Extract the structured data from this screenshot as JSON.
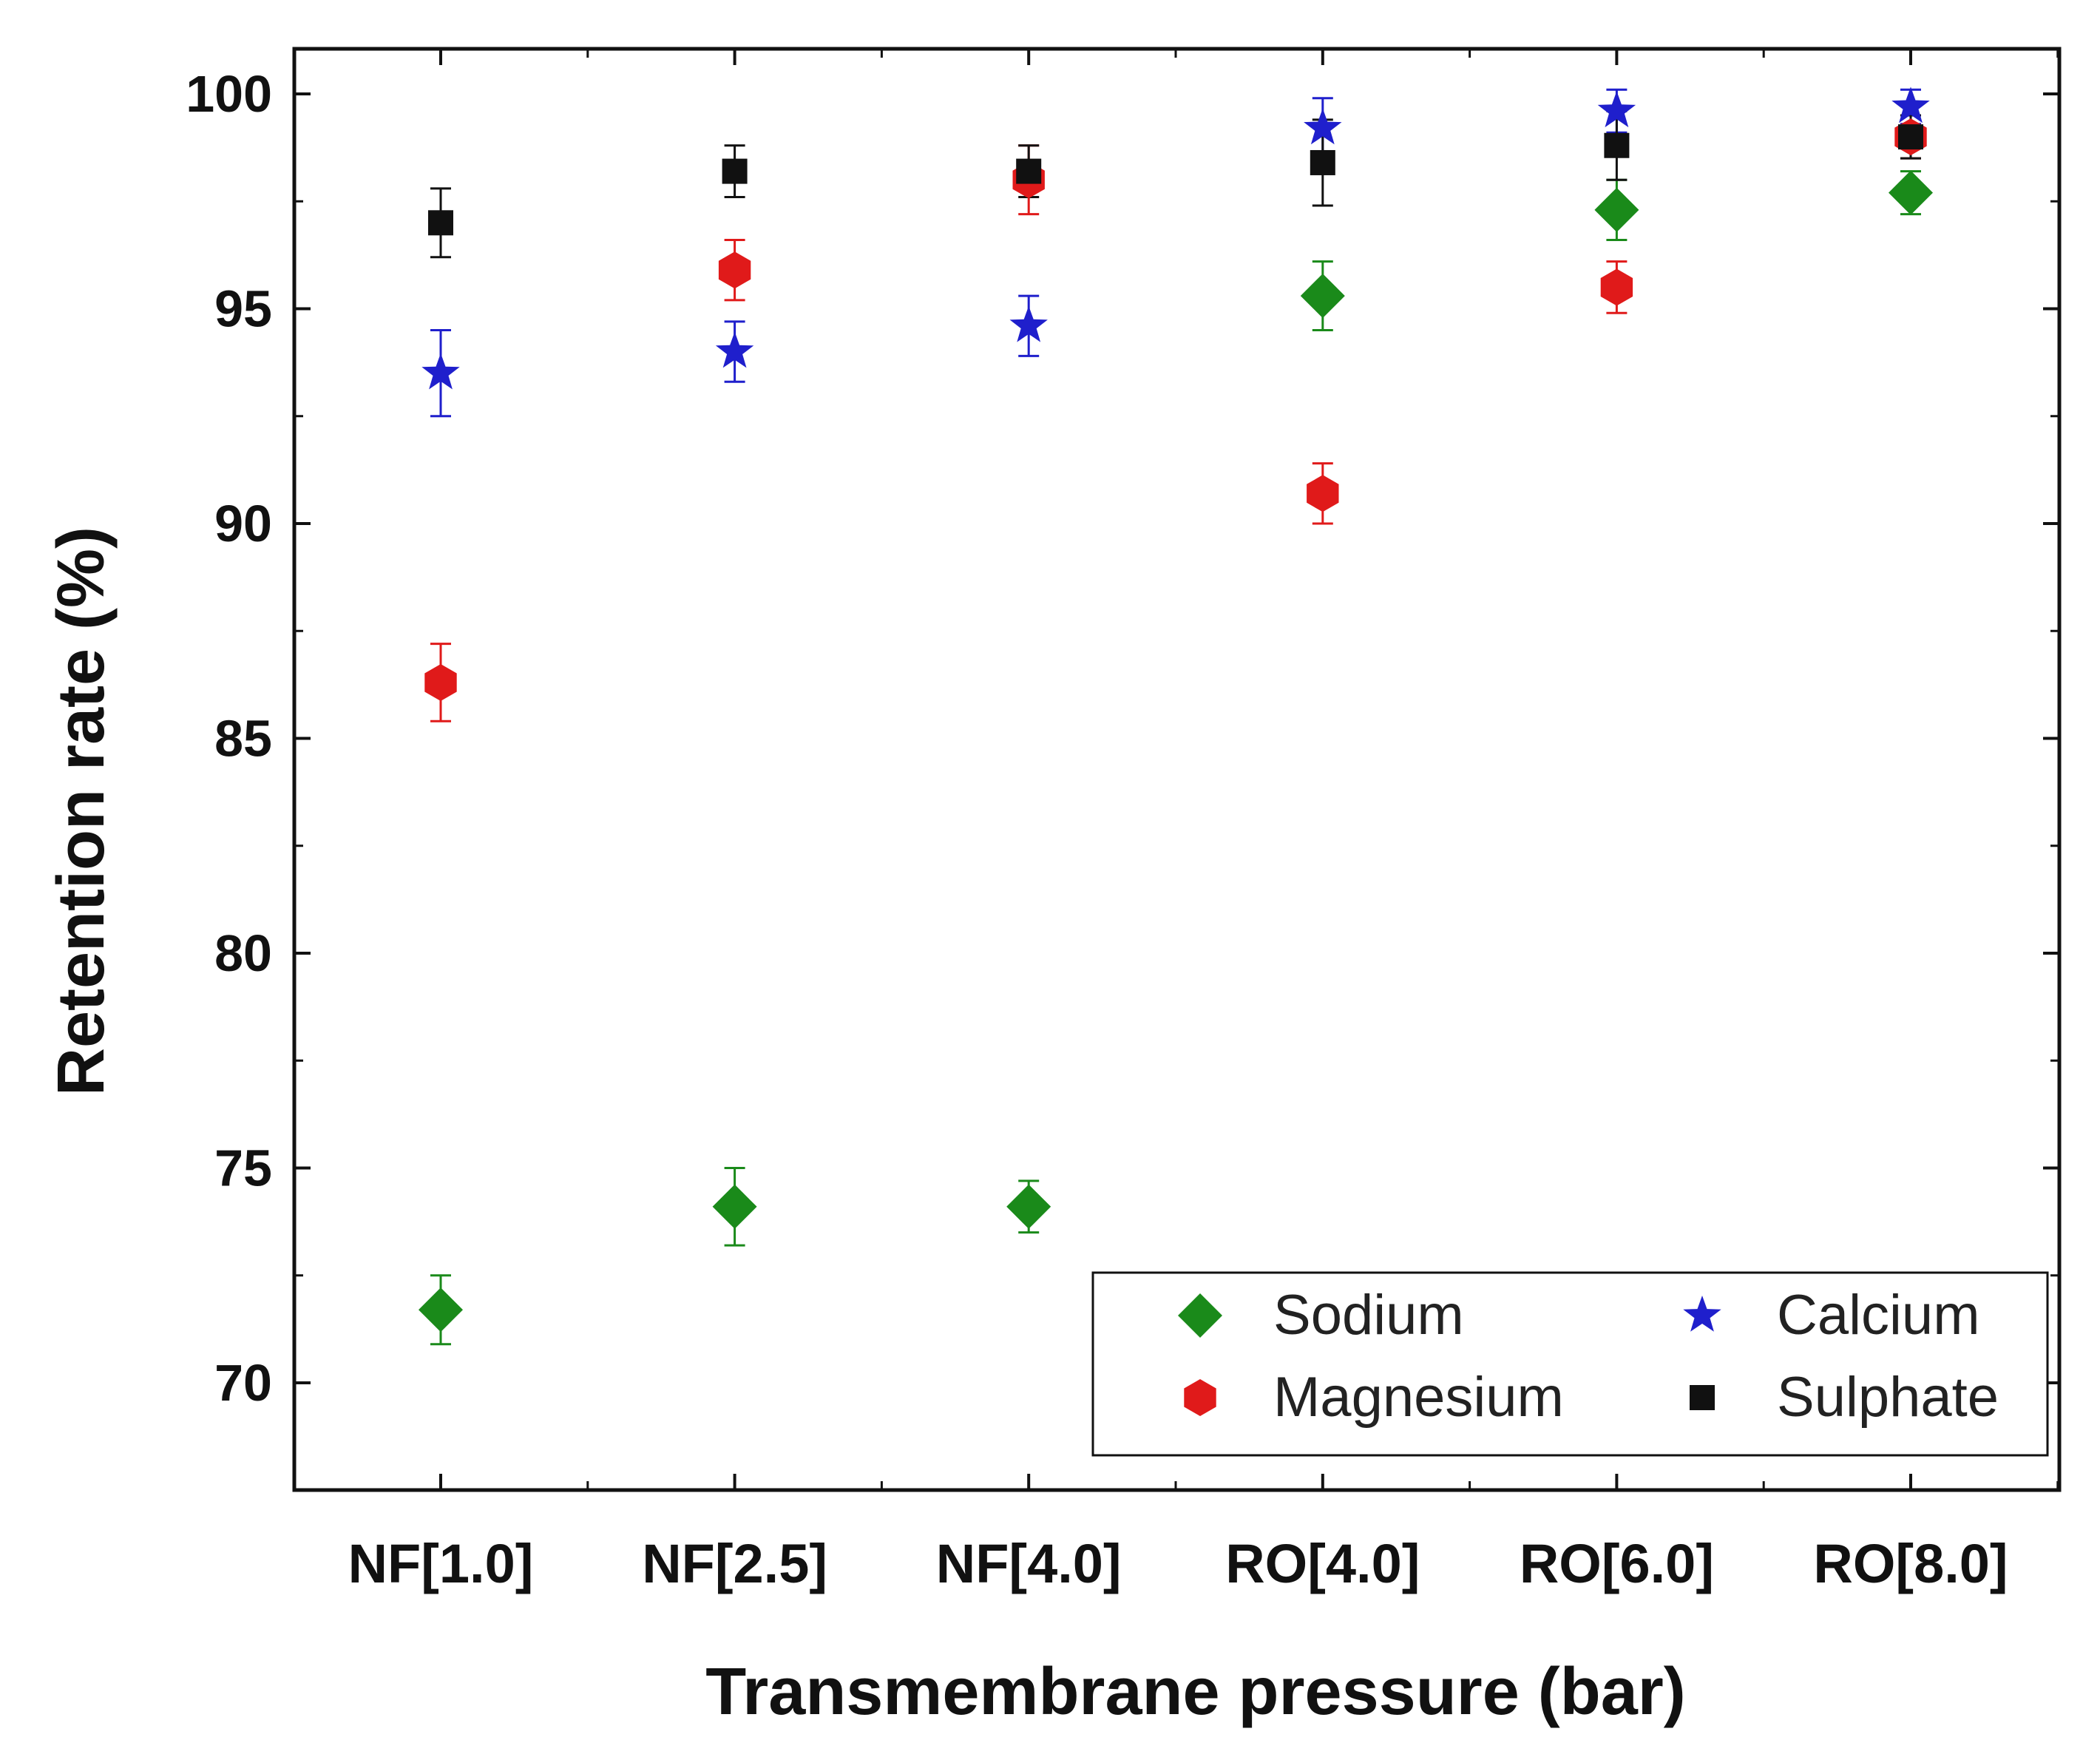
{
  "chart_data": {
    "type": "scatter",
    "title": "",
    "xlabel": "Transmembrane pressure (bar)",
    "ylabel": "Retention rate (%)",
    "categories": [
      "NF[1.0]",
      "NF[2.5]",
      "NF[4.0]",
      "RO[4.0]",
      "RO[6.0]",
      "RO[8.0]"
    ],
    "ylim": [
      67.5,
      101
    ],
    "yticks": [
      70,
      75,
      80,
      85,
      90,
      95,
      100
    ],
    "grid": false,
    "legend_position": "bottom-right",
    "series": [
      {
        "name": "Sodium",
        "marker": "diamond",
        "color": "#1a8a1a",
        "values": [
          71.7,
          74.1,
          74.1,
          95.3,
          97.3,
          97.7
        ],
        "errors": [
          0.8,
          0.9,
          0.6,
          0.8,
          0.7,
          0.5
        ]
      },
      {
        "name": "Calcium",
        "marker": "star",
        "color": "#1f1fcc",
        "values": [
          93.5,
          94.0,
          94.6,
          99.2,
          99.6,
          99.7
        ],
        "errors": [
          1.0,
          0.7,
          0.7,
          0.7,
          0.5,
          0.4
        ]
      },
      {
        "name": "Magnesium",
        "marker": "hexagon",
        "color": "#e01a1a",
        "values": [
          86.3,
          95.9,
          98.0,
          90.7,
          95.5,
          99.0
        ],
        "errors": [
          0.9,
          0.7,
          0.8,
          0.7,
          0.6,
          0.5
        ]
      },
      {
        "name": "Sulphate",
        "marker": "square",
        "color": "#111111",
        "values": [
          97.0,
          98.2,
          98.2,
          98.4,
          98.8,
          99.0
        ],
        "errors": [
          0.8,
          0.6,
          0.6,
          1.0,
          0.8,
          0.5
        ]
      }
    ]
  }
}
